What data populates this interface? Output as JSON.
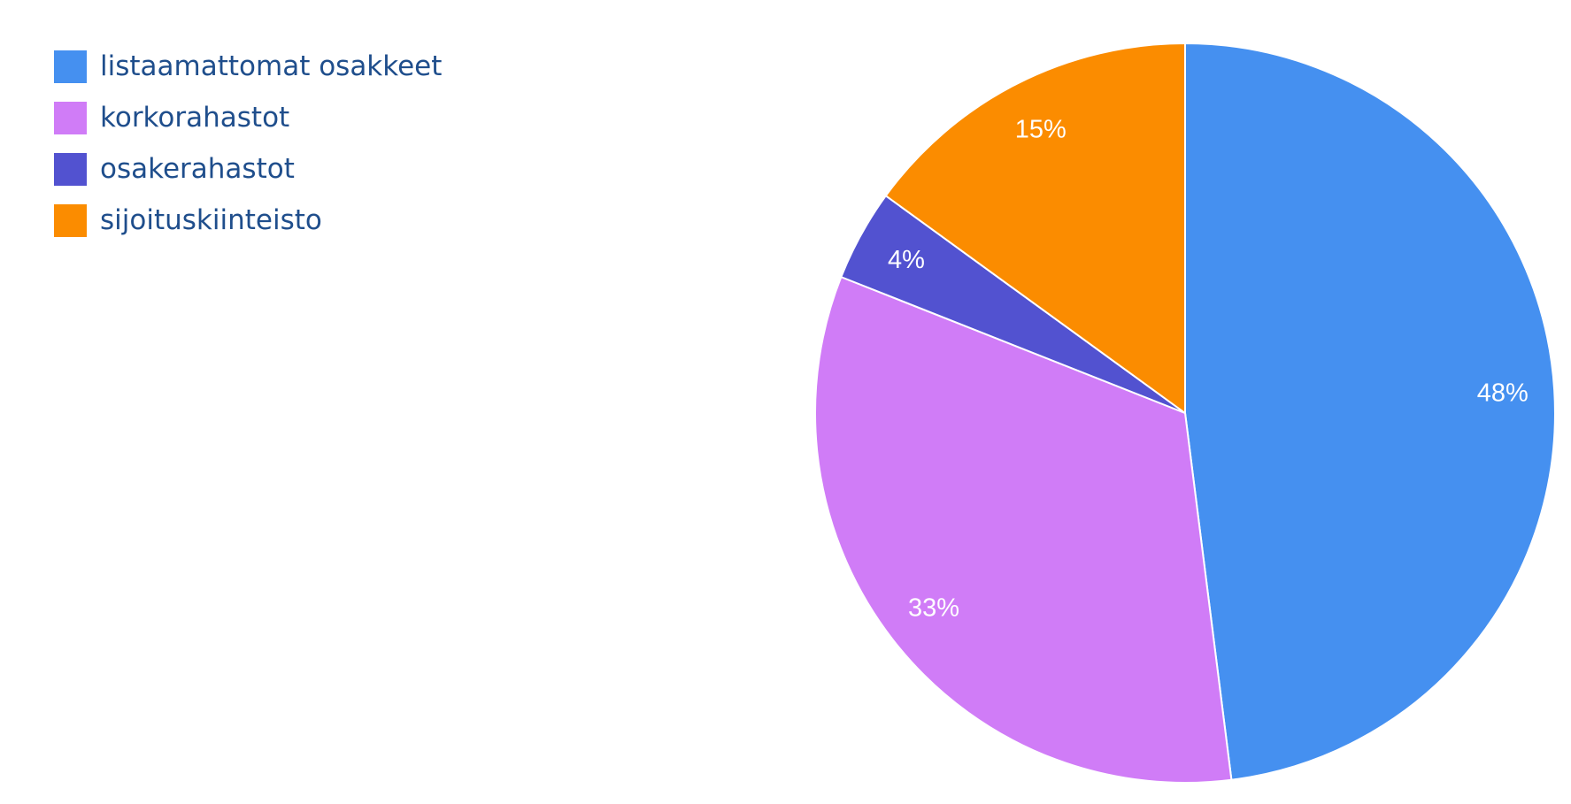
{
  "chart_data": {
    "type": "pie",
    "categories": [
      "listaamattomat osakkeet",
      "korkorahastot",
      "osakerahastot",
      "sijoituskiinteisto"
    ],
    "values": [
      48,
      33,
      4,
      15
    ],
    "value_labels": [
      "48%",
      "33%",
      "4%",
      "15%"
    ],
    "colors": [
      "#4590f0",
      "#d07cf7",
      "#5252d0",
      "#fb8c00"
    ],
    "legend_position": "top-left",
    "start_angle": "12 o'clock",
    "direction": "clockwise"
  }
}
